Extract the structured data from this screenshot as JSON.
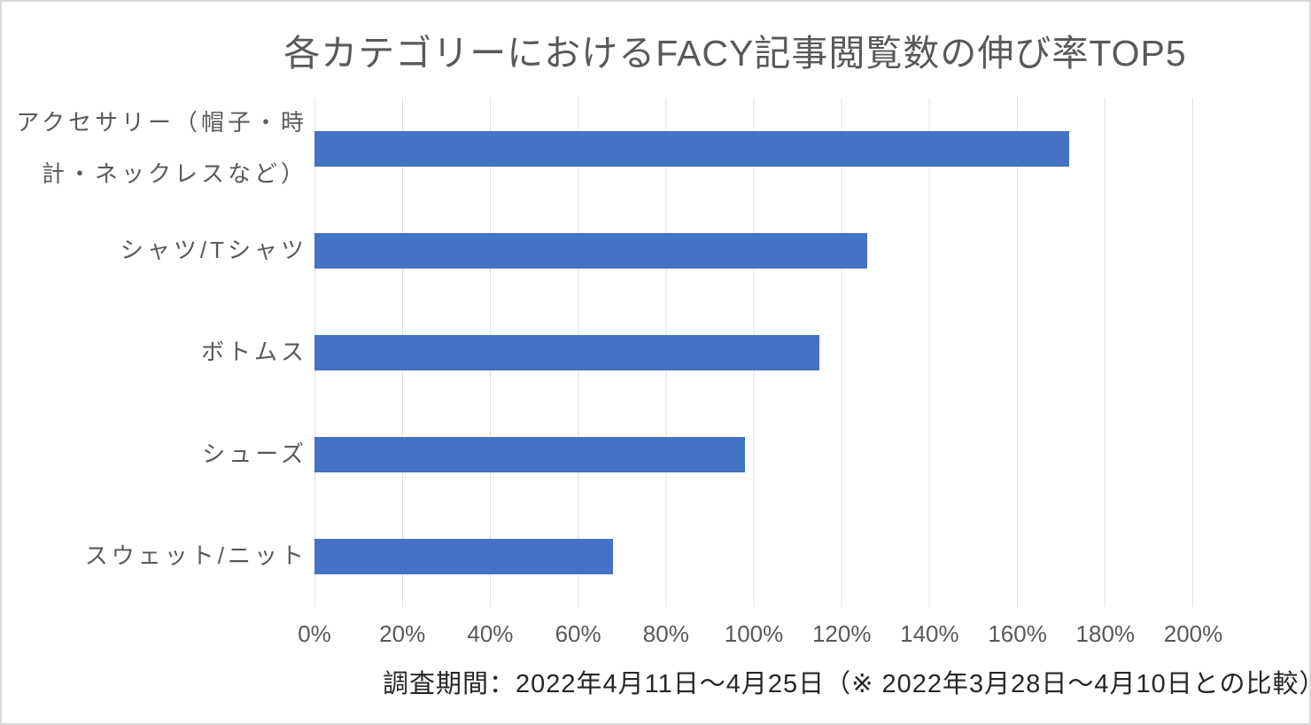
{
  "frame": {
    "background": "#ffffff",
    "border_color": "#d8d8d8"
  },
  "chart_data": {
    "type": "bar",
    "orientation": "horizontal",
    "title": "各カテゴリーにおけるFACY記事閲覧数の伸び率TOP5",
    "categories": [
      "アクセサリー（帽子・時計・ネックレスなど）",
      "シャツ/Tシャツ",
      "ボトムス",
      "シューズ",
      "スウェット/ニット"
    ],
    "values": [
      172,
      126,
      115,
      98,
      68
    ],
    "unit": "%",
    "xlim": [
      0,
      200
    ],
    "x_ticks": [
      "0%",
      "20%",
      "40%",
      "60%",
      "80%",
      "100%",
      "120%",
      "140%",
      "160%",
      "180%",
      "200%"
    ],
    "grid": "vertical",
    "gridline_color": "#dfdfdf",
    "bar_color": "#4472c4",
    "legend": "none",
    "caption": "調査期間：2022年4月11日〜4月25日（※ 2022年3月28日〜4月10日との比較）"
  }
}
